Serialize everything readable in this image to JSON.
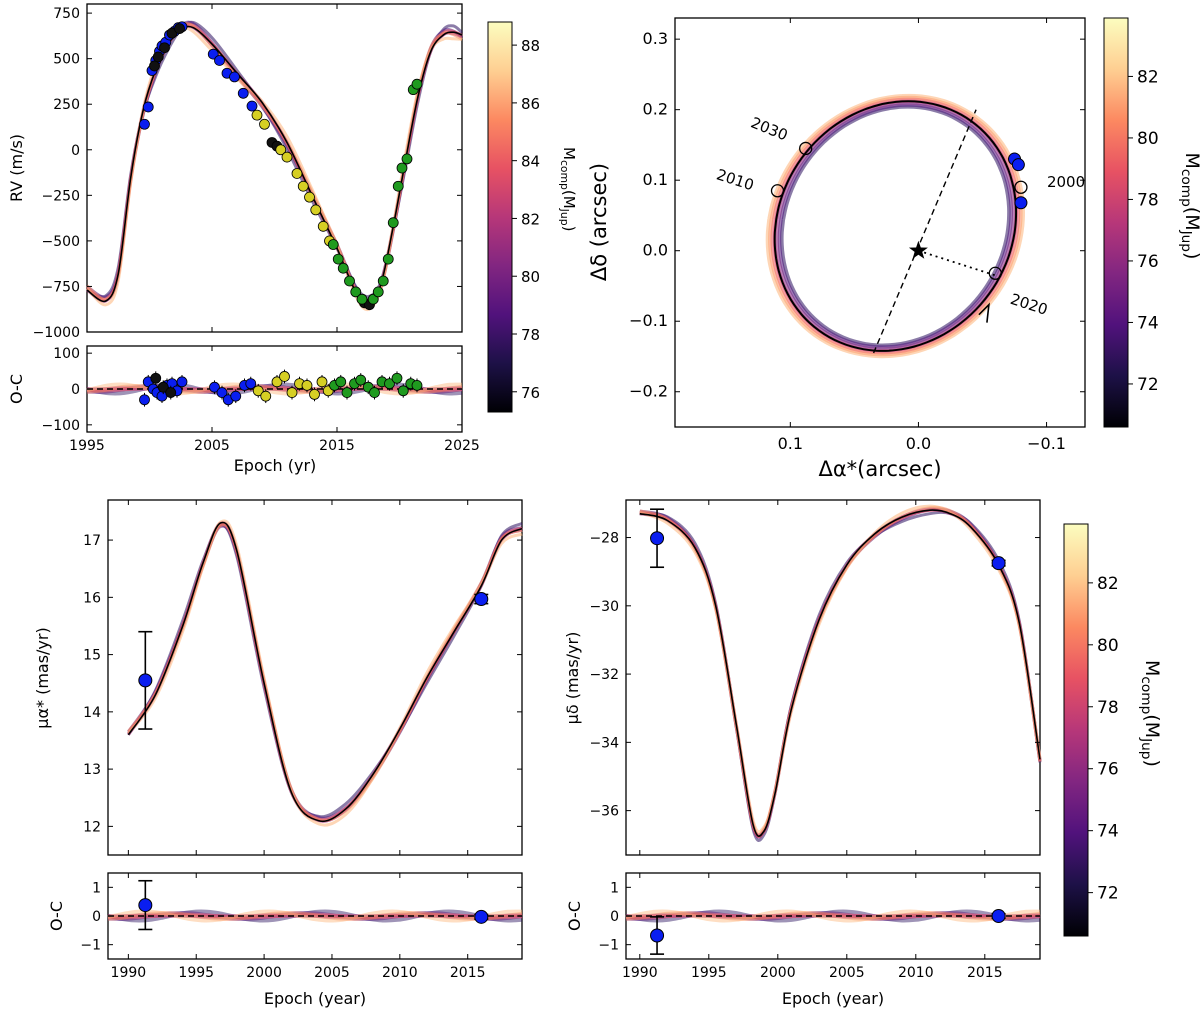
{
  "colormap": {
    "stops": [
      "#000004",
      "#1d1147",
      "#51127c",
      "#822681",
      "#b73779",
      "#e75263",
      "#fc8961",
      "#fecf92",
      "#fcfdbf"
    ],
    "band_curve_colors": [
      "#2b1160",
      "#51127c",
      "#822681",
      "#b73779",
      "#e75263",
      "#fc8961",
      "#fdb57a"
    ],
    "best_fit_color": "#000000",
    "marker_colors": {
      "blue": "#0a1ef0",
      "black": "#111111",
      "yellow": "#d6cf24",
      "green": "#1f9a1f"
    }
  },
  "chart_data": [
    {
      "id": "rv",
      "type": "line",
      "title": "",
      "xlabel": "",
      "ylabel": "RV (m/s)",
      "xlim": [
        1995,
        2025
      ],
      "ylim": [
        -1000,
        800
      ],
      "xticks": [
        1995,
        2005,
        2015,
        2025
      ],
      "yticks": [
        -1000,
        -750,
        -500,
        -250,
        0,
        250,
        500,
        750
      ],
      "yticklabels": [
        "−1000",
        "−750",
        "−500",
        "−250",
        "0",
        "250",
        "500",
        "750"
      ],
      "model": {
        "x": [
          1995,
          1996.5,
          1997.5,
          1998.5,
          1999.5,
          2000.5,
          2001.5,
          2002.5,
          2003.5,
          2005,
          2007,
          2009,
          2011,
          2013,
          2015,
          2016.5,
          2017.5,
          2018.5,
          2019.5,
          2020.5,
          2021.5,
          2022.5,
          2023.5,
          2024.3,
          2025
        ],
        "y": [
          -770,
          -830,
          -680,
          -150,
          220,
          440,
          580,
          660,
          670,
          580,
          420,
          260,
          40,
          -250,
          -540,
          -780,
          -840,
          -740,
          -420,
          -50,
          300,
          540,
          630,
          645,
          630
        ]
      },
      "points": [
        {
          "series": "blue",
          "x": [
            1999.6,
            1999.9,
            2000.2,
            2000.5,
            2000.8,
            2001.0,
            2001.3,
            2001.6,
            2002.0,
            2002.3,
            2002.6,
            2005.1,
            2005.6,
            2006.2,
            2006.8,
            2007.5,
            2008.2
          ],
          "y": [
            140,
            235,
            435,
            490,
            540,
            570,
            590,
            630,
            650,
            670,
            675,
            525,
            490,
            420,
            400,
            310,
            240
          ]
        },
        {
          "series": "black",
          "x": [
            2000.4,
            2000.7,
            2001.2,
            2001.8,
            2002.4,
            2009.8,
            2010.2,
            2017.2,
            2017.6
          ],
          "y": [
            460,
            510,
            560,
            640,
            665,
            40,
            20,
            -840,
            -850
          ]
        },
        {
          "series": "yellow",
          "x": [
            2008.6,
            2009.2,
            2010.5,
            2011.0,
            2011.8,
            2012.3,
            2012.8,
            2013.3,
            2013.9,
            2014.4
          ],
          "y": [
            190,
            140,
            0,
            -40,
            -130,
            -200,
            -260,
            -330,
            -420,
            -500
          ]
        },
        {
          "series": "green",
          "x": [
            2014.7,
            2015.1,
            2015.5,
            2016.0,
            2016.5,
            2017.0,
            2017.9,
            2018.3,
            2018.7,
            2019.1,
            2019.5,
            2019.9,
            2020.2,
            2020.6,
            2021.1,
            2021.4
          ],
          "y": [
            -520,
            -600,
            -650,
            -720,
            -780,
            -820,
            -820,
            -780,
            -720,
            -600,
            -400,
            -200,
            -100,
            -50,
            330,
            360
          ]
        }
      ]
    },
    {
      "id": "rv_residuals",
      "type": "scatter",
      "xlabel": "Epoch (yr)",
      "ylabel": "O-C",
      "xlim": [
        1995,
        2025
      ],
      "ylim": [
        -120,
        120
      ],
      "xticks": [
        1995,
        2005,
        2015,
        2025
      ],
      "yticks": [
        -100,
        0,
        100
      ],
      "yticklabels": [
        "−100",
        "0",
        "100"
      ],
      "points": [
        {
          "series": "blue",
          "x": [
            1999.6,
            1999.9,
            2000.3,
            2000.6,
            2001.0,
            2001.4,
            2001.8,
            2002.2,
            2002.6,
            2005.2,
            2005.8,
            2006.3,
            2006.9,
            2007.6,
            2008.1
          ],
          "y": [
            -30,
            20,
            0,
            -10,
            -20,
            10,
            15,
            -5,
            20,
            5,
            -10,
            -30,
            -20,
            10,
            15
          ]
        },
        {
          "series": "black",
          "x": [
            2000.5,
            2001.1,
            2001.7
          ],
          "y": [
            30,
            5,
            -10
          ]
        },
        {
          "series": "yellow",
          "x": [
            2008.7,
            2009.3,
            2010.2,
            2010.8,
            2011.4,
            2012.0,
            2012.6,
            2013.2,
            2013.8,
            2014.3
          ],
          "y": [
            -5,
            -20,
            20,
            35,
            -10,
            15,
            10,
            -15,
            20,
            -5
          ]
        },
        {
          "series": "green",
          "x": [
            2014.8,
            2015.3,
            2015.8,
            2016.4,
            2016.9,
            2017.5,
            2018.0,
            2018.6,
            2019.2,
            2019.8,
            2020.3,
            2020.9,
            2021.4
          ],
          "y": [
            10,
            20,
            -10,
            15,
            25,
            5,
            -10,
            20,
            15,
            30,
            -5,
            15,
            10
          ]
        }
      ]
    },
    {
      "id": "astrometry",
      "type": "line",
      "xlabel": "Δα*(arcsec)",
      "ylabel": "Δδ (arcsec)",
      "xlim": [
        0.19,
        -0.13
      ],
      "ylim": [
        -0.25,
        0.33
      ],
      "xticks": [
        0.1,
        0.0,
        -0.1
      ],
      "xticklabels": [
        "0.1",
        "0.0",
        "−0.1"
      ],
      "yticks": [
        -0.2,
        -0.1,
        0.0,
        0.1,
        0.2,
        0.3
      ],
      "yticklabels": [
        "−0.2",
        "−0.1",
        "0.0",
        "0.1",
        "0.2",
        "0.3"
      ],
      "star": [
        0.0,
        0.0
      ],
      "line_of_nodes": {
        "from": [
          0.035,
          -0.145
        ],
        "to": [
          -0.045,
          0.2
        ]
      },
      "periastron": {
        "from": [
          0.0,
          0.0
        ],
        "to": [
          -0.06,
          -0.035
        ]
      },
      "epoch_markers": [
        {
          "label": "2000",
          "x": -0.08,
          "y": 0.09
        },
        {
          "label": "2010",
          "x": 0.11,
          "y": 0.085
        },
        {
          "label": "2020",
          "x": -0.06,
          "y": -0.032
        },
        {
          "label": "2030",
          "x": 0.088,
          "y": 0.145
        }
      ],
      "observations": {
        "x": [
          -0.075,
          -0.078,
          -0.08
        ],
        "y": [
          0.13,
          0.122,
          0.068
        ]
      }
    },
    {
      "id": "pm_ra",
      "type": "line",
      "xlabel": "",
      "ylabel": "μα* (mas/yr)",
      "xlim": [
        1988.5,
        2019
      ],
      "ylim": [
        11.5,
        17.7
      ],
      "xticks": [
        1990,
        1995,
        2000,
        2005,
        2010,
        2015
      ],
      "yticks": [
        12,
        13,
        14,
        15,
        16,
        17
      ],
      "model": {
        "x": [
          1990,
          1992,
          1994,
          1995.5,
          1996.8,
          1998,
          2000,
          2002,
          2004,
          2006,
          2008,
          2010,
          2012,
          2014,
          2016,
          2017.5,
          2019
        ],
        "y": [
          13.6,
          14.3,
          15.5,
          16.6,
          17.3,
          16.8,
          14.5,
          12.6,
          12.1,
          12.3,
          12.9,
          13.7,
          14.6,
          15.4,
          16.2,
          17.0,
          17.2
        ]
      },
      "observations": {
        "x": [
          1991.25,
          2016.0
        ],
        "y": [
          14.55,
          15.97
        ],
        "err": [
          0.85,
          0.08
        ]
      }
    },
    {
      "id": "pm_ra_residuals",
      "type": "scatter",
      "xlabel": "Epoch (year)",
      "ylabel": "O-C",
      "xlim": [
        1988.5,
        2019
      ],
      "ylim": [
        -1.5,
        1.5
      ],
      "xticks": [
        1990,
        1995,
        2000,
        2005,
        2010,
        2015
      ],
      "yticks": [
        -1,
        0,
        1
      ],
      "yticklabels": [
        "−1",
        "0",
        "1"
      ],
      "observations": {
        "x": [
          1991.25,
          2016.0
        ],
        "y": [
          0.38,
          -0.03
        ],
        "err": [
          0.85,
          0.08
        ]
      }
    },
    {
      "id": "pm_dec",
      "type": "line",
      "xlabel": "",
      "ylabel": "μδ (mas/yr)",
      "xlim": [
        1989,
        2019
      ],
      "ylim": [
        -37.3,
        -26.9
      ],
      "xticks": [
        1990,
        1995,
        2000,
        2005,
        2010,
        2015
      ],
      "yticks": [
        -28,
        -30,
        -32,
        -34,
        -36
      ],
      "yticklabels": [
        "−28",
        "−30",
        "−32",
        "−34",
        "−36"
      ],
      "model": {
        "x": [
          1990,
          1992,
          1994,
          1995.5,
          1997,
          1998.2,
          1999,
          1999.8,
          2001,
          2003,
          2005,
          2007,
          2009,
          2011,
          2012.5,
          2014,
          2016,
          2017.5,
          2019
        ],
        "y": [
          -27.3,
          -27.5,
          -28.3,
          -30.0,
          -33.5,
          -36.4,
          -36.6,
          -35.5,
          -33.0,
          -30.4,
          -28.8,
          -27.9,
          -27.4,
          -27.2,
          -27.3,
          -27.7,
          -28.8,
          -30.5,
          -34.5
        ]
      },
      "observations": {
        "x": [
          1991.25,
          2016.0
        ],
        "y": [
          -28.02,
          -28.75
        ],
        "err": [
          0.85,
          0.08
        ]
      }
    },
    {
      "id": "pm_dec_residuals",
      "type": "scatter",
      "xlabel": "Epoch (year)",
      "ylabel": "O-C",
      "xlim": [
        1989,
        2019
      ],
      "ylim": [
        -1.5,
        1.5
      ],
      "xticks": [
        1990,
        1995,
        2000,
        2005,
        2010,
        2015
      ],
      "yticks": [
        -1,
        0,
        1
      ],
      "yticklabels": [
        "−1",
        "0",
        "1"
      ],
      "observations": {
        "x": [
          1991.25,
          2016.0
        ],
        "y": [
          -0.68,
          0.0
        ],
        "err": [
          0.65,
          0.08
        ]
      }
    }
  ],
  "colorbars": [
    {
      "id": "cb1",
      "label_main": "M",
      "label_sub": "comp",
      "label_paren": "(M",
      "label_sub2": "Jup",
      "label_end": ")",
      "ticks": [
        76,
        78,
        80,
        82,
        84,
        86,
        88
      ],
      "range": [
        75.3,
        88.8
      ]
    },
    {
      "id": "cb2",
      "label_main": "M",
      "label_sub": "comp",
      "label_paren": "(M",
      "label_sub2": "Jup",
      "label_end": ")",
      "ticks": [
        72,
        74,
        76,
        78,
        80,
        82
      ],
      "range": [
        70.6,
        83.9
      ]
    },
    {
      "id": "cb3",
      "label_main": "M",
      "label_sub": "comp",
      "label_paren": "(M",
      "label_sub2": "Jup",
      "label_end": ")",
      "ticks": [
        72,
        74,
        76,
        78,
        80,
        82
      ],
      "range": [
        70.6,
        83.9
      ]
    }
  ]
}
